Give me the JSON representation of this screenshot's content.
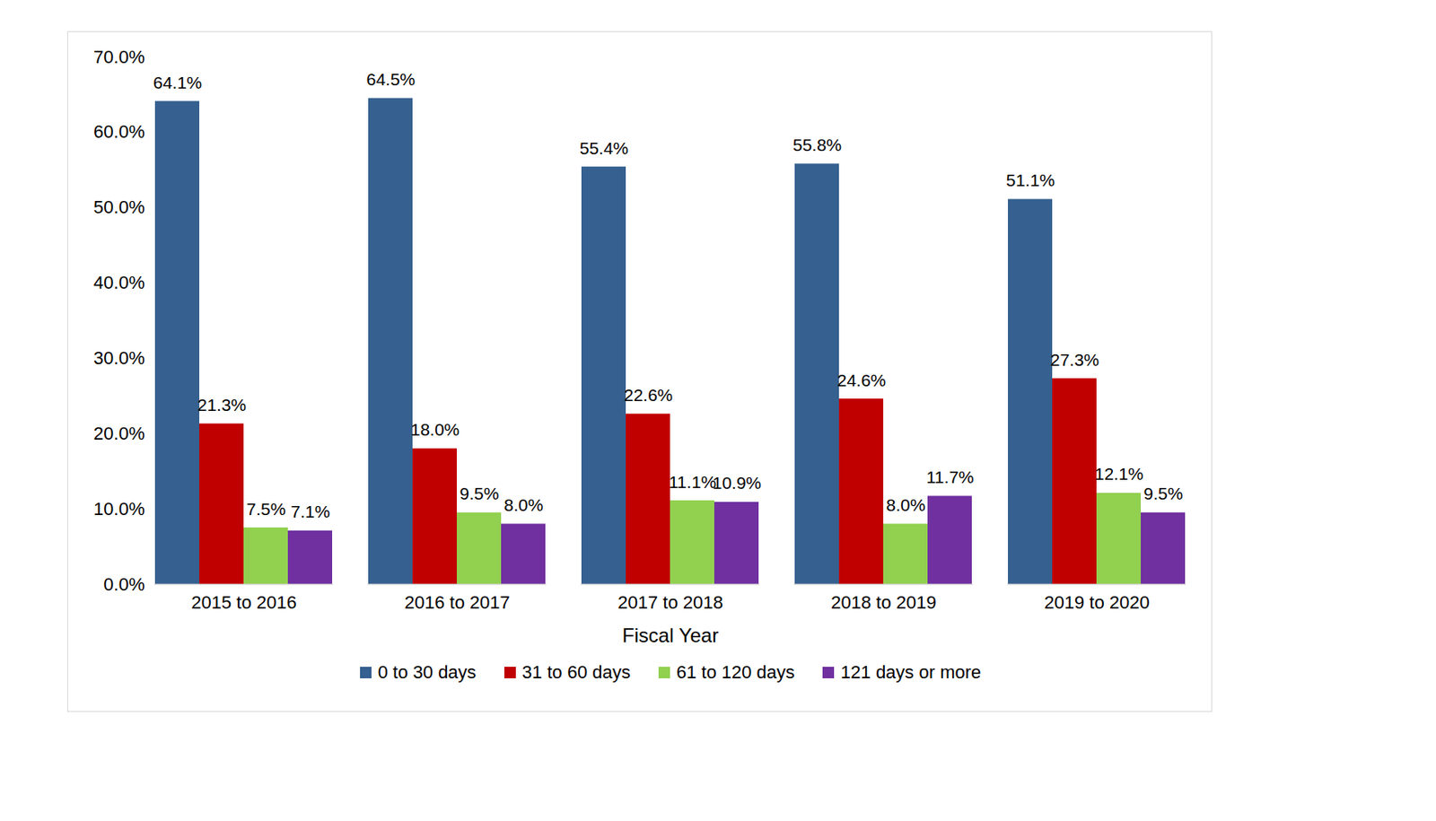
{
  "chart_data": {
    "type": "bar",
    "xlabel": "Fiscal Year",
    "categories": [
      "2015 to 2016",
      "2016 to 2017",
      "2017 to 2018",
      "2018 to 2019",
      "2019 to 2020"
    ],
    "series": [
      {
        "name": "0 to 30 days",
        "color": "#35608f",
        "values": [
          64.1,
          64.5,
          55.4,
          55.8,
          51.1
        ],
        "value_labels": [
          "64.1%",
          "64.5%",
          "55.4%",
          "55.8%",
          "51.1%"
        ]
      },
      {
        "name": "31 to 60 days",
        "color": "#c00000",
        "values": [
          21.3,
          18.0,
          22.6,
          24.6,
          27.3
        ],
        "value_labels": [
          "21.3%",
          "18.0%",
          "22.6%",
          "24.6%",
          "27.3%"
        ]
      },
      {
        "name": "61 to 120 days",
        "color": "#92d050",
        "values": [
          7.5,
          9.5,
          11.1,
          8.0,
          12.1
        ],
        "value_labels": [
          "7.5%",
          "9.5%",
          "11.1%",
          "8.0%",
          "12.1%"
        ]
      },
      {
        "name": "121 days or more",
        "color": "#7030a0",
        "values": [
          7.1,
          8.0,
          10.9,
          11.7,
          9.5
        ],
        "value_labels": [
          "7.1%",
          "8.0%",
          "10.9%",
          "11.7%",
          "9.5%"
        ]
      }
    ],
    "ylim": [
      0,
      70
    ],
    "yticks": [
      {
        "value": 0,
        "label": "0.0%"
      },
      {
        "value": 10,
        "label": "10.0%"
      },
      {
        "value": 20,
        "label": "20.0%"
      },
      {
        "value": 30,
        "label": "30.0%"
      },
      {
        "value": 40,
        "label": "40.0%"
      },
      {
        "value": 50,
        "label": "50.0%"
      },
      {
        "value": 60,
        "label": "60.0%"
      },
      {
        "value": 70,
        "label": "70.0%"
      }
    ],
    "grid": false,
    "data_labels": true,
    "legend": "bottom"
  }
}
